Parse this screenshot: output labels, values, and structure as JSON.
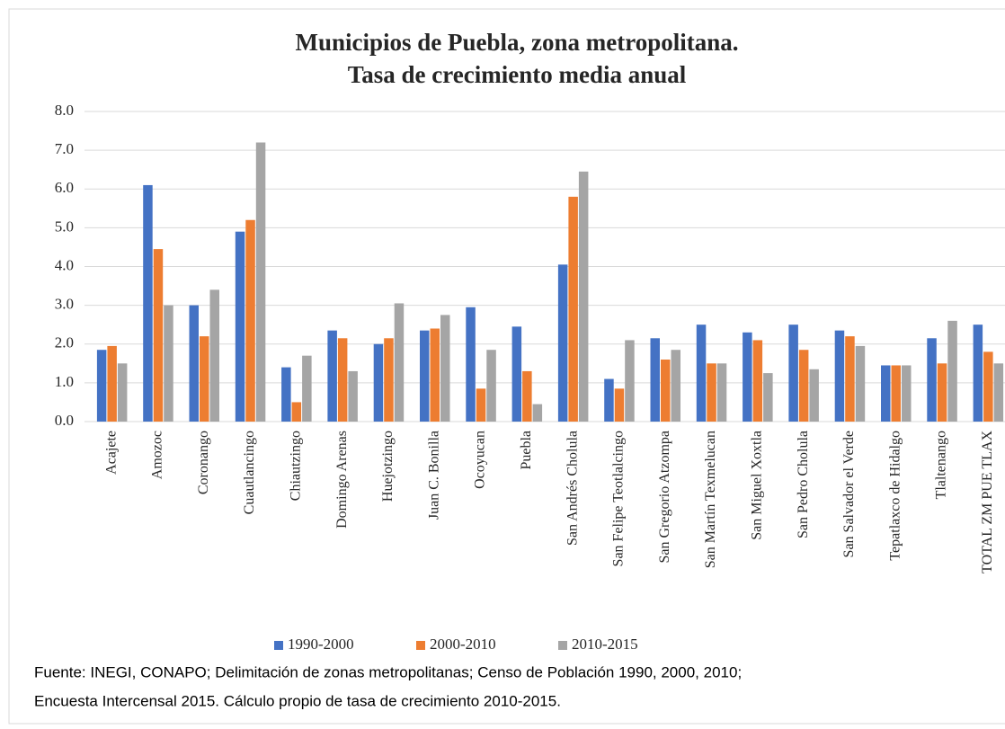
{
  "chart_data": {
    "type": "bar",
    "title": [
      "Municipios de Puebla, zona metropolitana.",
      "Tasa de crecimiento media anual"
    ],
    "categories": [
      "Acajete",
      "Amozoc",
      "Coronango",
      "Cuautlancingo",
      "Chiautzingo",
      "Domingo Arenas",
      "Huejotzingo",
      "Juan C. Bonilla",
      "Ocoyucan",
      "Puebla",
      "San Andrés Cholula",
      "San Felipe Teotlalcingo",
      "San Gregorio Atzompa",
      "San Martín Texmelucan",
      "San Miguel Xoxtla",
      "San Pedro Cholula",
      "San Salvador el Verde",
      "Tepatlaxco de Hidalgo",
      "Tlaltenango",
      "TOTAL ZM PUE TLAX"
    ],
    "series": [
      {
        "name": "1990-2000",
        "color": "#4472c4",
        "values": [
          1.85,
          6.1,
          3.0,
          4.9,
          1.4,
          2.35,
          2.0,
          2.35,
          2.95,
          2.45,
          4.05,
          1.1,
          2.15,
          2.5,
          2.3,
          2.5,
          2.35,
          1.45,
          2.15,
          2.5
        ]
      },
      {
        "name": "2000-2010",
        "color": "#ed7d31",
        "values": [
          1.95,
          4.45,
          2.2,
          5.2,
          0.5,
          2.15,
          2.15,
          2.4,
          0.85,
          1.3,
          5.8,
          0.85,
          1.6,
          1.5,
          2.1,
          1.85,
          2.2,
          1.45,
          1.5,
          1.8
        ]
      },
      {
        "name": "2010-2015",
        "color": "#a5a5a5",
        "values": [
          1.5,
          3.0,
          3.4,
          7.2,
          1.7,
          1.3,
          3.05,
          2.75,
          1.85,
          0.45,
          6.45,
          2.1,
          1.85,
          1.5,
          1.25,
          1.35,
          1.95,
          1.45,
          2.6,
          1.5
        ]
      }
    ],
    "ylim": [
      0,
      8
    ],
    "yticks": [
      {
        "value": 0,
        "label": "0.0"
      },
      {
        "value": 1,
        "label": "1.0"
      },
      {
        "value": 2,
        "label": "2.0"
      },
      {
        "value": 3,
        "label": "3.0"
      },
      {
        "value": 4,
        "label": "4.0"
      },
      {
        "value": 5,
        "label": "5.0"
      },
      {
        "value": 6,
        "label": "6.0"
      },
      {
        "value": 7,
        "label": "7.0"
      },
      {
        "value": 8,
        "label": "8.0"
      }
    ],
    "grid": true,
    "legend": "bottom",
    "source": [
      "Fuente: INEGI, CONAPO; Delimitación de zonas metropolitanas; Censo de Población 1990,  2000, 2010;",
      "Encuesta Intercensal 2015. Cálculo propio de tasa de crecimiento 2010-2015."
    ]
  }
}
